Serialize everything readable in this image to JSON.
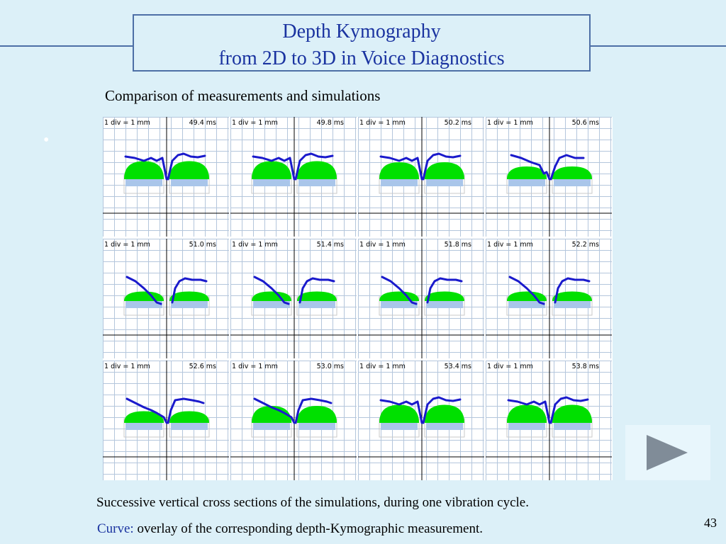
{
  "slide": {
    "title_line1": "Depth Kymography",
    "title_line2": "from 2D to 3D in Voice Diagnostics",
    "subtitle": "Comparison of measurements and simulations",
    "bullet": "•",
    "caption1": "Successive vertical cross sections of the simulations, during one vibration cycle.",
    "caption2_highlight": "Curve:",
    "caption2_rest": " overlay of the corresponding depth-Kymographic measurement.",
    "page_number": "43",
    "play_icon": "play-triangle-icon"
  },
  "panels": [
    {
      "scale": "1 div = 1 mm",
      "time": "49.4 ms",
      "mass_height": 0.85,
      "curve_shape": "flat"
    },
    {
      "scale": "1 div = 1 mm",
      "time": "49.8 ms",
      "mass_height": 0.85,
      "curve_shape": "flat"
    },
    {
      "scale": "1 div = 1 mm",
      "time": "50.2 ms",
      "mass_height": 0.8,
      "curve_shape": "flat"
    },
    {
      "scale": "1 div = 1 mm",
      "time": "50.6 ms",
      "mass_height": 0.6,
      "curve_shape": "slope"
    },
    {
      "scale": "1 div = 1 mm",
      "time": "51.0 ms",
      "mass_height": 0.45,
      "curve_shape": "drop"
    },
    {
      "scale": "1 div = 1 mm",
      "time": "51.4 ms",
      "mass_height": 0.45,
      "curve_shape": "drop"
    },
    {
      "scale": "1 div = 1 mm",
      "time": "51.8 ms",
      "mass_height": 0.45,
      "curve_shape": "drop"
    },
    {
      "scale": "1 div = 1 mm",
      "time": "52.2 ms",
      "mass_height": 0.45,
      "curve_shape": "drop"
    },
    {
      "scale": "1 div = 1 mm",
      "time": "52.6 ms",
      "mass_height": 0.55,
      "curve_shape": "vee"
    },
    {
      "scale": "1 div = 1 mm",
      "time": "53.0 ms",
      "mass_height": 0.8,
      "curve_shape": "vee"
    },
    {
      "scale": "1 div = 1 mm",
      "time": "53.4 ms",
      "mass_height": 0.85,
      "curve_shape": "flat"
    },
    {
      "scale": "1 div = 1 mm",
      "time": "53.8 ms",
      "mass_height": 0.85,
      "curve_shape": "flat"
    }
  ],
  "colors": {
    "accent": "#1a33a0",
    "title_border": "#4d6fa6",
    "background": "#dcf0f8",
    "mass": "#00e000",
    "mass_base": "#a9c6ea",
    "curve": "#1a1acc",
    "grid": "#b4c6dc",
    "play": "#808c98"
  }
}
